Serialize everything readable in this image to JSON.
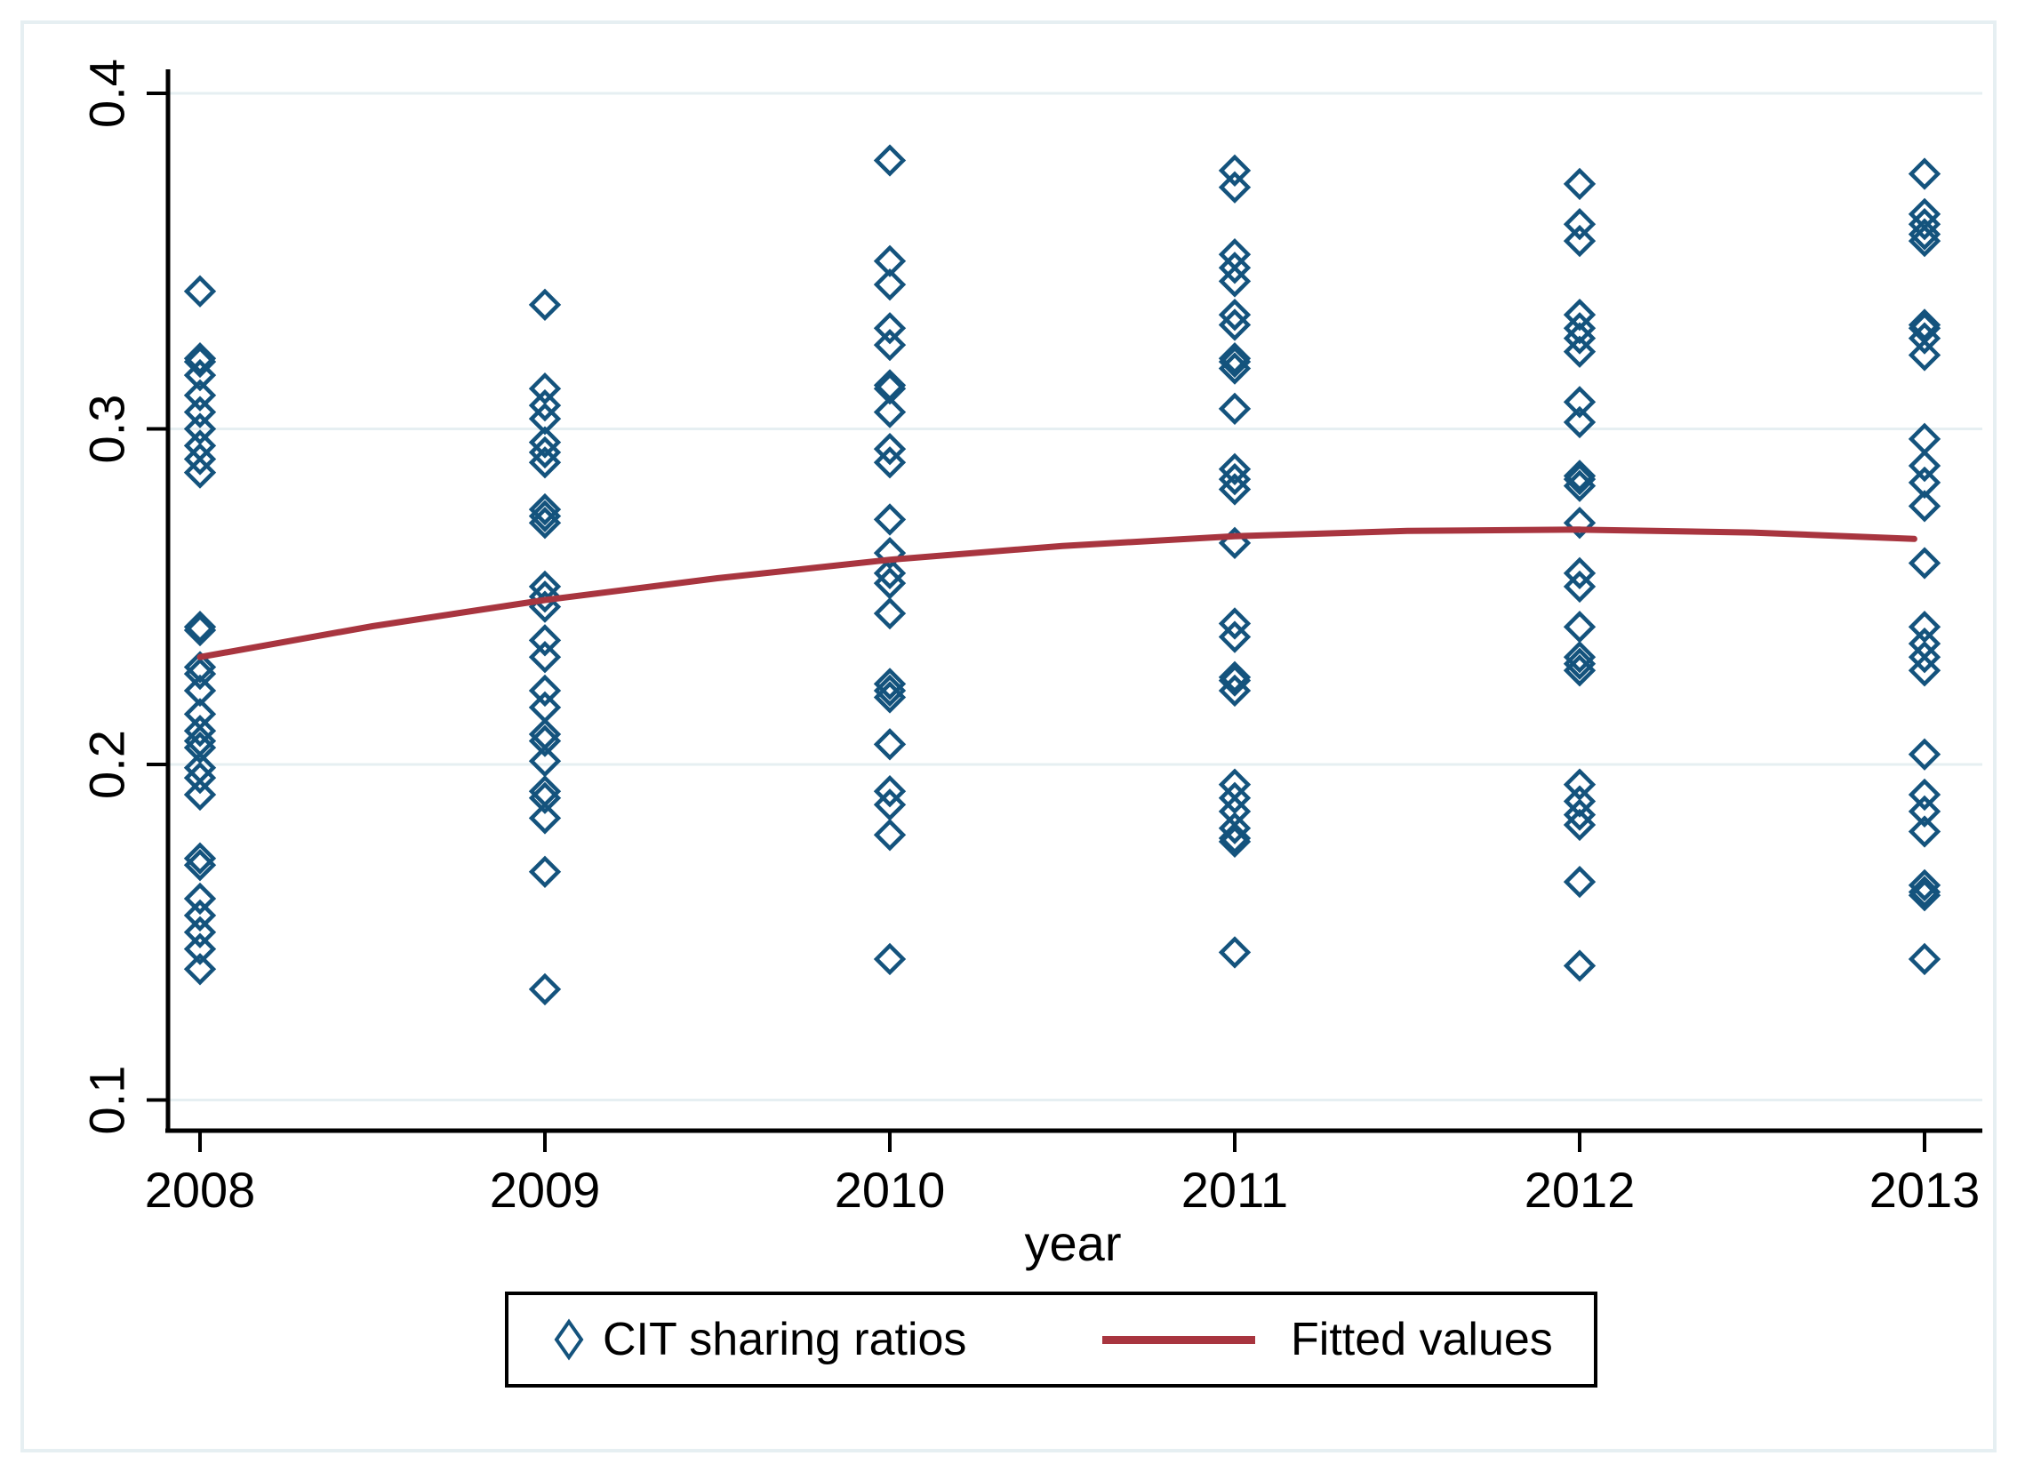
{
  "figure": {
    "background": "#ffffff",
    "frame_color": "#e6eff2",
    "gridline_color": "#e6eff2",
    "axis_color": "#000000",
    "text_color": "#000000",
    "marker_color": "#14537d",
    "fit_line_color": "#a8353f"
  },
  "chart_data": {
    "type": "scatter",
    "title": "",
    "xlabel": "year",
    "ylabel": "",
    "grid": "on",
    "legend_position": "bottom",
    "xlim": [
      2007.55,
      2013.45
    ],
    "ylim": [
      0.085,
      0.412
    ],
    "x_ticks": [
      {
        "label": "2008",
        "value": 2008
      },
      {
        "label": "2009",
        "value": 2009
      },
      {
        "label": "2010",
        "value": 2010
      },
      {
        "label": "2011",
        "value": 2011
      },
      {
        "label": "2012",
        "value": 2012
      },
      {
        "label": "2013",
        "value": 2013
      }
    ],
    "y_ticks": [
      {
        "label": "0.4",
        "value": 0.4
      },
      {
        "label": "0.3",
        "value": 0.3
      },
      {
        "label": "0.2",
        "value": 0.2
      },
      {
        "label": "0.1",
        "value": 0.1
      }
    ],
    "series": [
      {
        "name": "CIT sharing ratios",
        "type": "scatter",
        "marker": "hollow-diamond",
        "color": "#14537d",
        "points_by_year": {
          "2008": [
            0.341,
            0.321,
            0.32,
            0.316,
            0.31,
            0.305,
            0.3,
            0.295,
            0.291,
            0.287,
            0.241,
            0.24,
            0.229,
            0.227,
            0.222,
            0.215,
            0.21,
            0.207,
            0.205,
            0.199,
            0.196,
            0.191,
            0.172,
            0.17,
            0.16,
            0.155,
            0.15,
            0.145,
            0.139
          ],
          "2009": [
            0.337,
            0.312,
            0.307,
            0.303,
            0.296,
            0.293,
            0.29,
            0.276,
            0.274,
            0.272,
            0.253,
            0.25,
            0.247,
            0.237,
            0.232,
            0.222,
            0.217,
            0.209,
            0.207,
            0.201,
            0.192,
            0.19,
            0.184,
            0.168,
            0.133
          ],
          "2010": [
            0.38,
            0.35,
            0.343,
            0.33,
            0.325,
            0.313,
            0.312,
            0.305,
            0.294,
            0.29,
            0.273,
            0.263,
            0.257,
            0.254,
            0.245,
            0.224,
            0.222,
            0.22,
            0.206,
            0.192,
            0.188,
            0.179,
            0.142
          ],
          "2011": [
            0.377,
            0.372,
            0.352,
            0.348,
            0.344,
            0.334,
            0.331,
            0.321,
            0.32,
            0.318,
            0.306,
            0.288,
            0.285,
            0.282,
            0.266,
            0.242,
            0.238,
            0.226,
            0.225,
            0.222,
            0.194,
            0.19,
            0.186,
            0.181,
            0.178,
            0.177,
            0.144
          ],
          "2012": [
            0.373,
            0.361,
            0.356,
            0.334,
            0.33,
            0.327,
            0.323,
            0.308,
            0.302,
            0.286,
            0.285,
            0.283,
            0.272,
            0.257,
            0.253,
            0.241,
            0.232,
            0.23,
            0.228,
            0.194,
            0.189,
            0.185,
            0.182,
            0.165,
            0.14
          ],
          "2013": [
            0.376,
            0.364,
            0.361,
            0.358,
            0.356,
            0.331,
            0.33,
            0.327,
            0.322,
            0.297,
            0.289,
            0.284,
            0.277,
            0.26,
            0.241,
            0.236,
            0.232,
            0.228,
            0.203,
            0.191,
            0.186,
            0.18,
            0.164,
            0.162,
            0.161,
            0.142
          ]
        }
      },
      {
        "name": "Fitted values",
        "type": "line",
        "color": "#a8353f",
        "points": [
          [
            2008.0,
            0.232
          ],
          [
            2008.5,
            0.2412
          ],
          [
            2009.0,
            0.249
          ],
          [
            2009.5,
            0.2555
          ],
          [
            2010.0,
            0.261
          ],
          [
            2010.5,
            0.2651
          ],
          [
            2011.0,
            0.268
          ],
          [
            2011.5,
            0.2696
          ],
          [
            2012.0,
            0.27
          ],
          [
            2012.5,
            0.2691
          ],
          [
            2012.97,
            0.2672
          ]
        ]
      }
    ],
    "legend": {
      "entries": [
        "CIT sharing ratios",
        "Fitted values"
      ],
      "border_color": "#000000",
      "background": "#ffffff"
    }
  }
}
